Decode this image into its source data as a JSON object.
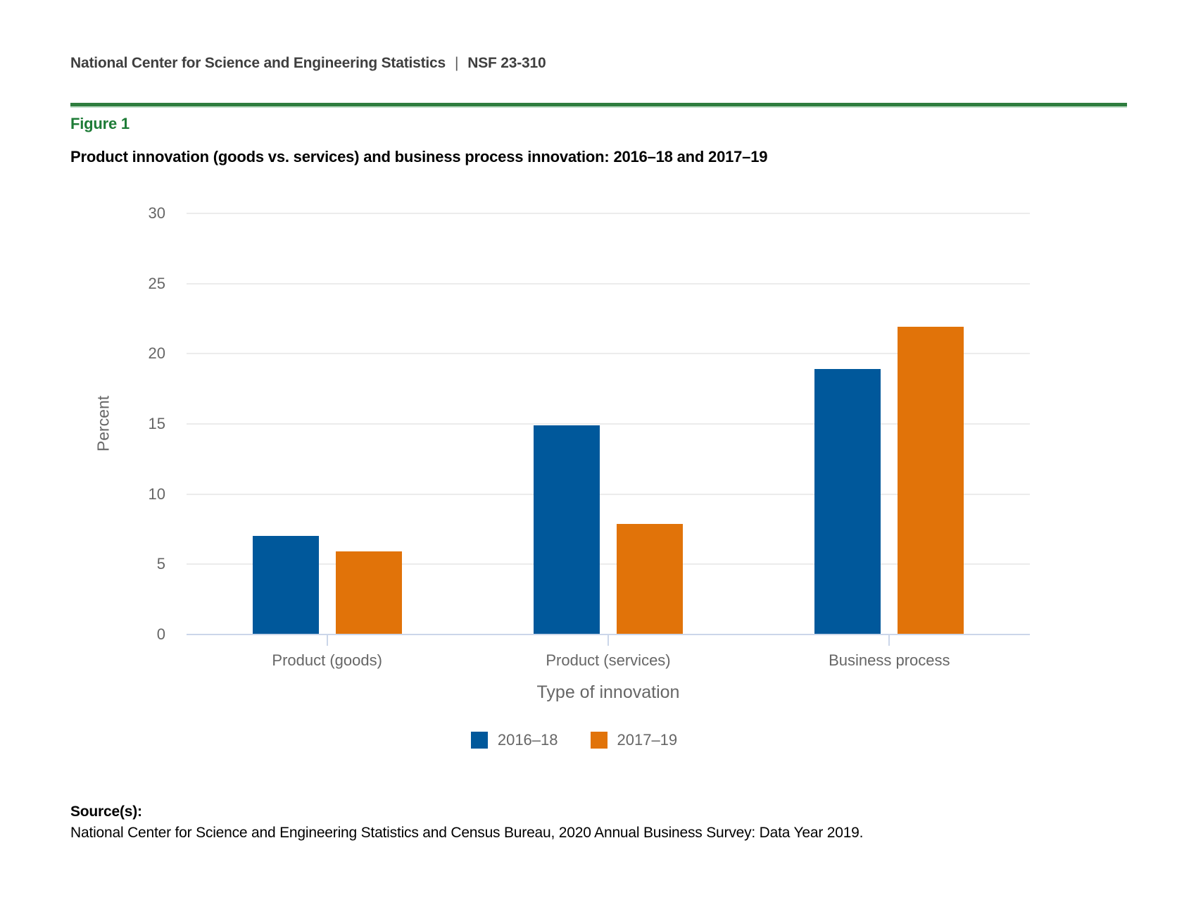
{
  "page": {
    "header": {
      "org": "National Center for Science and Engineering Statistics",
      "divider": "|",
      "report_number": "NSF 23-310"
    },
    "figure_label": "Figure 1",
    "figure_title": "Product innovation (goods vs. services) and business process innovation: 2016–18 and 2017–19",
    "source_heading": "Source(s):",
    "source_text": "National Center for Science and Engineering Statistics and Census Bureau, 2020 Annual Business Survey: Data Year 2019."
  },
  "chart_data": {
    "type": "bar",
    "categories": [
      "Product (goods)",
      "Product (services)",
      "Business process"
    ],
    "series": [
      {
        "name": "2016–18",
        "color": "#00589b",
        "values": [
          7.0,
          14.9,
          18.9
        ]
      },
      {
        "name": "2017–19",
        "color": "#e17309",
        "values": [
          5.9,
          7.9,
          21.9
        ]
      }
    ],
    "xlabel": "Type of innovation",
    "ylabel": "Percent",
    "ylim": [
      0,
      30
    ],
    "yticks": [
      0,
      5,
      10,
      15,
      20,
      25,
      30
    ],
    "grid": true,
    "legend_position": "bottom-center"
  },
  "colors": {
    "rule_green": "#2e7d3e",
    "figure_label_green": "#1e7c37",
    "gridline": "#ececec",
    "axis_line": "#cbd6e9",
    "axis_text": "#666666",
    "header_text": "#3f3f3f",
    "title_text": "#000000"
  }
}
